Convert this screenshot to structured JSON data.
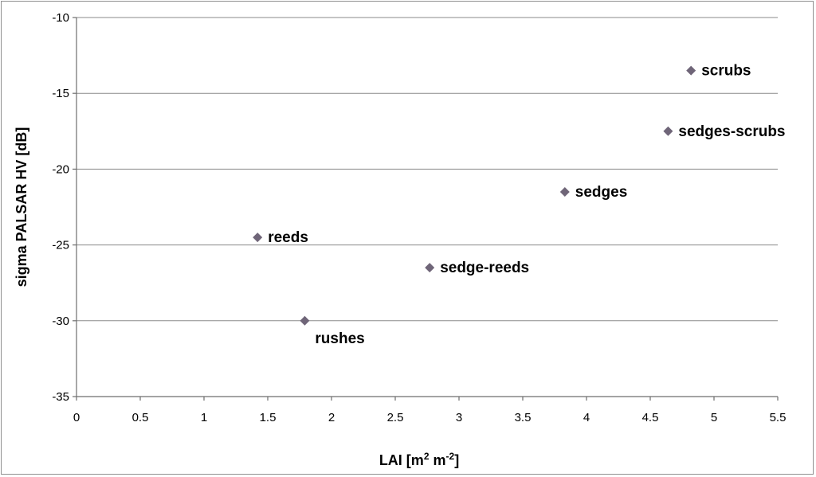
{
  "chart_data": {
    "type": "scatter",
    "xlabel": "LAI [m² m⁻²]",
    "xlabel_parts": {
      "base": "LAI [m",
      "sup1": "2",
      "mid": " m",
      "sup2": "-2",
      "end": "]"
    },
    "ylabel": "sigma PALSAR HV [dB]",
    "xlim": [
      0,
      5.5
    ],
    "ylim": [
      -35,
      -10
    ],
    "xticks": [
      0,
      0.5,
      1,
      1.5,
      2,
      2.5,
      3,
      3.5,
      4,
      4.5,
      5,
      5.5
    ],
    "yticks": [
      -35,
      -30,
      -25,
      -20,
      -15,
      -10
    ],
    "grid": "horizontal",
    "marker": "diamond",
    "marker_color": "#6f6578",
    "points": [
      {
        "label": "reeds",
        "x": 1.42,
        "y": -24.5
      },
      {
        "label": "rushes",
        "x": 1.79,
        "y": -30.0
      },
      {
        "label": "sedge-reeds",
        "x": 2.77,
        "y": -26.5
      },
      {
        "label": "sedges",
        "x": 3.83,
        "y": -21.5
      },
      {
        "label": "sedges-scrubs",
        "x": 4.64,
        "y": -17.5
      },
      {
        "label": "scrubs",
        "x": 4.82,
        "y": -13.5
      }
    ]
  }
}
